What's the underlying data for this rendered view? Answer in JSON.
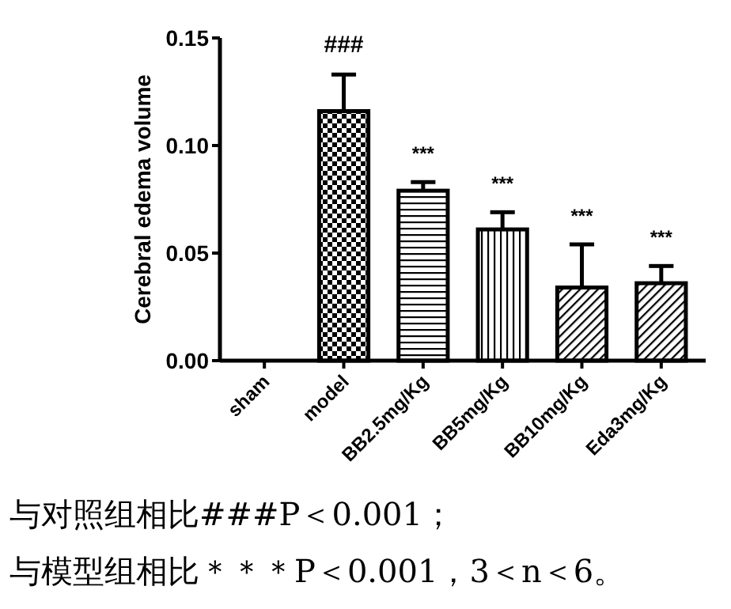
{
  "chart_data": {
    "type": "bar",
    "ylabel": "Cerebral edema volume",
    "categories": [
      "sham",
      "model",
      "BB2.5mg/Kg",
      "BB5mg/Kg",
      "BB10mg/Kg",
      "Eda3mg/Kg"
    ],
    "values": [
      0,
      0.116,
      0.079,
      0.061,
      0.034,
      0.036
    ],
    "errors": [
      null,
      [
        0.116,
        0.133
      ],
      [
        0.079,
        0.083
      ],
      [
        0.061,
        0.069
      ],
      [
        0.034,
        0.054
      ],
      [
        0.036,
        0.044
      ]
    ],
    "color": "#000000",
    "ylim": [
      0,
      0.15
    ],
    "yticks": [
      {
        "value": 0,
        "label": "0.00"
      },
      {
        "value": 0.05,
        "label": "0.05"
      },
      {
        "value": 0.1,
        "label": "0.10"
      },
      {
        "value": 0.15,
        "label": "0.15"
      }
    ],
    "grid": false,
    "annotations": [
      {
        "text": "###",
        "x": "model",
        "y": 0.133
      },
      {
        "text": "***",
        "x": "BB2.5mg/Kg",
        "y": 0.083
      },
      {
        "text": "***",
        "x": "BB5mg/Kg",
        "y": 0.069
      },
      {
        "text": "***",
        "x": "BB10mg/Kg",
        "y": 0.054
      },
      {
        "text": "***",
        "x": "Eda3mg/Kg",
        "y": 0.044
      },
      "与对照组相比###P＜0.001；",
      "与模型组相比＊＊＊P＜0.001，3＜n＜6。"
    ]
  }
}
